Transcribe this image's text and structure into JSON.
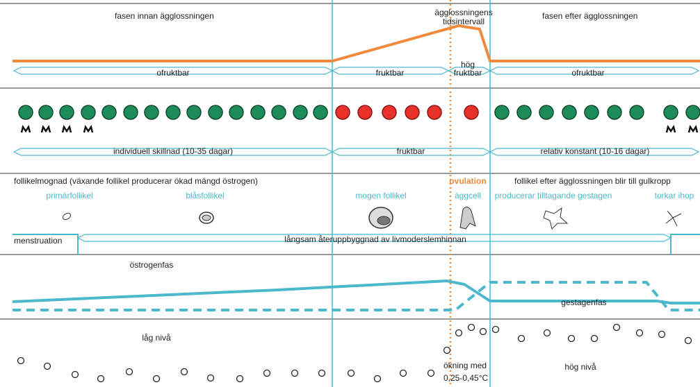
{
  "phases": {
    "before": "fasen innan ägglossningen",
    "interval": [
      "ägglossningens",
      "tidsintervall"
    ],
    "after": "fasen efter ägglossningen"
  },
  "fertility": {
    "first": "ofruktbar",
    "fertile": "fruktbar",
    "high": [
      "hög",
      "fruktbar"
    ],
    "last": "ofruktbar"
  },
  "cycle_length": {
    "before": "individuell skillnad (10-35 dagar)",
    "fertile": "fruktbar",
    "after": "relativ konstant (10-16 dagar)"
  },
  "follicle": {
    "heading": "follikelmognad (växande follikel producerar ökad mängd östrogen)",
    "stages": [
      "primärfollikel",
      "blåsfollikel",
      "mogen follikel"
    ]
  },
  "ovulation": {
    "heading": "ovulation",
    "egg": "äggcell"
  },
  "corpus_luteum": {
    "heading": "follikel efter ägglossningen blir till gulkropp",
    "stages": [
      "producerar tilltagande gestagen",
      "torkar ihop"
    ]
  },
  "endometrium": {
    "menstruation": "menstruation",
    "rebuild": "långsam återuppbyggnad av livmoderslemhinnan"
  },
  "hormones": {
    "estrogen": "östrogenfas",
    "gestagen": "gestagenfas"
  },
  "temperature": {
    "low": "låg nivå",
    "rise": [
      "ökning med",
      "0,25-0,45°C"
    ],
    "high": "hög nivå"
  }
}
